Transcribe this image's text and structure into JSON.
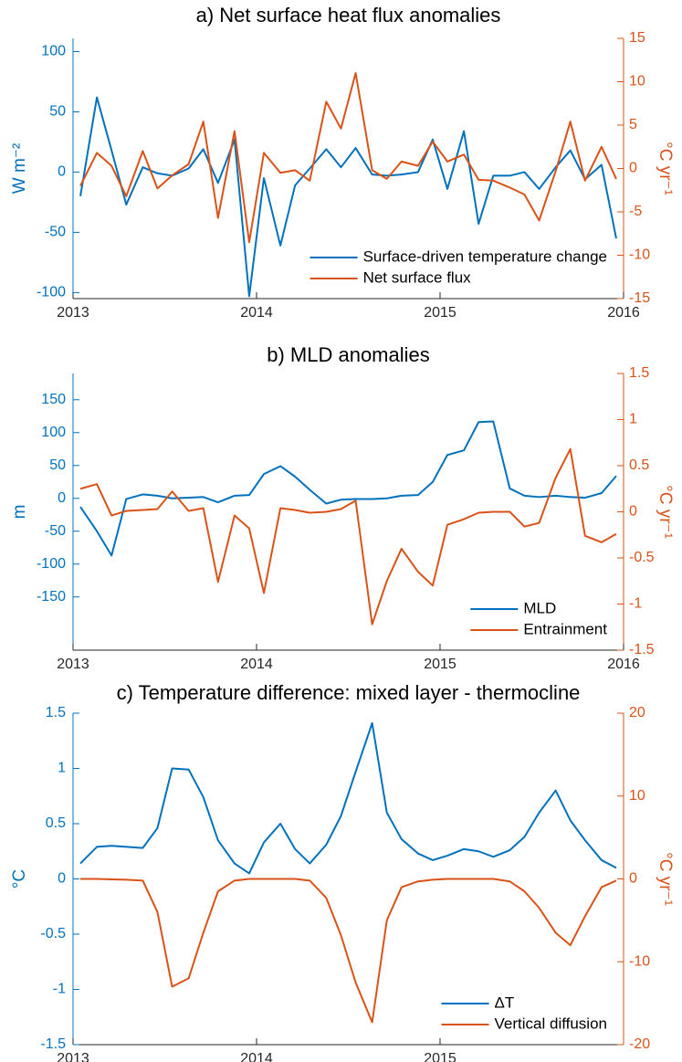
{
  "chart_data": [
    {
      "type": "line",
      "title": "a) Net surface heat flux anomalies",
      "x": [
        2013.04,
        2013.13,
        2013.21,
        2013.29,
        2013.38,
        2013.46,
        2013.54,
        2013.63,
        2013.71,
        2013.79,
        2013.88,
        2013.96,
        2014.04,
        2014.13,
        2014.21,
        2014.29,
        2014.38,
        2014.46,
        2014.54,
        2014.63,
        2014.71,
        2014.79,
        2014.88,
        2014.96,
        2015.04,
        2015.13,
        2015.21,
        2015.29,
        2015.38,
        2015.46,
        2015.54,
        2015.63,
        2015.71,
        2015.79,
        2015.88,
        2015.96
      ],
      "xlim": [
        2013,
        2016
      ],
      "xticks": [
        2013,
        2014,
        2015,
        2016
      ],
      "ylim": [
        -105,
        111
      ],
      "yticks": [
        -100,
        -50,
        0,
        50,
        100
      ],
      "ylabel": "W m⁻²",
      "y2lim": [
        -15,
        15
      ],
      "y2ticks": [
        -15,
        -10,
        -5,
        0,
        5,
        10,
        15
      ],
      "y2label": "°C yr⁻¹",
      "legend": "lower right",
      "series": [
        {
          "name": "Surface-driven temperature change",
          "color": "#0072BD",
          "values": [
            -20,
            62,
            18,
            -27,
            4,
            -1,
            -3,
            3,
            19,
            -9,
            27,
            -103,
            -5,
            -61,
            -11,
            3,
            19,
            4,
            20,
            -2,
            -3,
            -2,
            0,
            27,
            -14,
            34,
            -43,
            -3,
            -3,
            0,
            -14,
            4,
            18,
            -6,
            6,
            -55
          ]
        },
        {
          "name": "Net surface flux",
          "color": "#D95319",
          "axis": "y2",
          "values": [
            -2,
            1.8,
            0.3,
            -3.2,
            2,
            -2.3,
            -0.8,
            0.5,
            5.4,
            -5.7,
            4.3,
            -8.5,
            1.8,
            -0.5,
            -0.2,
            -1.4,
            7.7,
            4.6,
            11,
            -0.2,
            -1.2,
            0.8,
            0.3,
            3.1,
            0.8,
            1.6,
            -1.3,
            -1.4,
            -2.2,
            -3,
            -6,
            -0.3,
            5.4,
            -1.4,
            2.5,
            -1.2
          ]
        }
      ]
    },
    {
      "type": "line",
      "title": "b) MLD anomalies",
      "x": [
        2013.04,
        2013.13,
        2013.21,
        2013.29,
        2013.38,
        2013.46,
        2013.54,
        2013.63,
        2013.71,
        2013.79,
        2013.88,
        2013.96,
        2014.04,
        2014.13,
        2014.21,
        2014.29,
        2014.38,
        2014.46,
        2014.54,
        2014.63,
        2014.71,
        2014.79,
        2014.88,
        2014.96,
        2015.04,
        2015.13,
        2015.21,
        2015.29,
        2015.38,
        2015.46,
        2015.54,
        2015.63,
        2015.71,
        2015.79,
        2015.88,
        2015.96
      ],
      "xlim": [
        2013,
        2016
      ],
      "xticks": [
        2013,
        2014,
        2015,
        2016
      ],
      "ylim": [
        -231,
        190
      ],
      "yticks": [
        -150,
        -100,
        -50,
        0,
        50,
        100,
        150
      ],
      "ylabel": "m",
      "y2lim": [
        -1.5,
        1.5
      ],
      "y2ticks": [
        -1.5,
        -1,
        -0.5,
        0,
        0.5,
        1,
        1.5
      ],
      "y2label": "°C yr⁻¹",
      "legend": "lower right",
      "series": [
        {
          "name": "MLD",
          "color": "#0072BD",
          "values": [
            -13,
            -50,
            -87,
            -1,
            6,
            4,
            0,
            1,
            2,
            -6,
            4,
            5,
            37,
            49,
            33,
            13,
            -8,
            -2,
            -1,
            -1,
            0,
            4,
            5,
            25,
            66,
            73,
            116,
            117,
            15,
            4,
            2,
            4,
            2,
            1,
            8,
            34
          ]
        },
        {
          "name": "Entrainment",
          "color": "#D95319",
          "axis": "y2",
          "values": [
            0.25,
            0.3,
            -0.04,
            0.01,
            0.02,
            0.03,
            0.22,
            0.01,
            0.04,
            -0.76,
            -0.04,
            -0.18,
            -0.88,
            0.04,
            0.02,
            -0.01,
            0,
            0.03,
            0.12,
            -1.22,
            -0.75,
            -0.4,
            -0.65,
            -0.8,
            -0.14,
            -0.08,
            -0.01,
            0,
            0,
            -0.16,
            -0.12,
            0.37,
            0.68,
            -0.26,
            -0.33,
            -0.24
          ]
        }
      ]
    },
    {
      "type": "line",
      "title": "c) Temperature difference: mixed layer - thermocline",
      "x": [
        2013.04,
        2013.13,
        2013.21,
        2013.29,
        2013.38,
        2013.46,
        2013.54,
        2013.63,
        2013.71,
        2013.79,
        2013.88,
        2013.96,
        2014.04,
        2014.13,
        2014.21,
        2014.29,
        2014.38,
        2014.46,
        2014.54,
        2014.63,
        2014.71,
        2014.79,
        2014.88,
        2014.96,
        2015.04,
        2015.13,
        2015.21,
        2015.29,
        2015.38,
        2015.46,
        2015.54,
        2015.63,
        2015.71,
        2015.79,
        2015.88,
        2015.96
      ],
      "xlim": [
        2013,
        2016
      ],
      "xticks": [
        2013,
        2014,
        2015
      ],
      "ylim": [
        -1.5,
        1.5
      ],
      "yticks": [
        -1.5,
        -1,
        -0.5,
        0,
        0.5,
        1,
        1.5
      ],
      "ylabel": "°C",
      "y2lim": [
        -20,
        20
      ],
      "y2ticks": [
        -20,
        -10,
        0,
        10,
        20
      ],
      "y2label": "°C yr⁻¹",
      "legend": "lower right",
      "series": [
        {
          "name": "ΔT",
          "color": "#0072BD",
          "values": [
            0.14,
            0.29,
            0.3,
            0.29,
            0.28,
            0.46,
            1.0,
            0.99,
            0.74,
            0.35,
            0.14,
            0.05,
            0.33,
            0.5,
            0.27,
            0.14,
            0.31,
            0.57,
            0.97,
            1.41,
            0.6,
            0.36,
            0.23,
            0.17,
            0.21,
            0.27,
            0.25,
            0.2,
            0.26,
            0.38,
            0.6,
            0.8,
            0.53,
            0.35,
            0.17,
            0.1
          ]
        },
        {
          "name": "Vertical diffusion",
          "color": "#D95319",
          "axis": "y2",
          "values": [
            0,
            0,
            -0.05,
            -0.1,
            -0.2,
            -4,
            -13,
            -12,
            -6.5,
            -1.5,
            -0.2,
            0,
            0,
            0,
            0,
            -0.2,
            -2.3,
            -6.8,
            -12.5,
            -17.3,
            -5,
            -1,
            -0.3,
            -0.1,
            0,
            0,
            0,
            0,
            -0.3,
            -1.5,
            -3.5,
            -6.5,
            -8,
            -4.5,
            -1,
            -0.2
          ]
        }
      ]
    }
  ]
}
